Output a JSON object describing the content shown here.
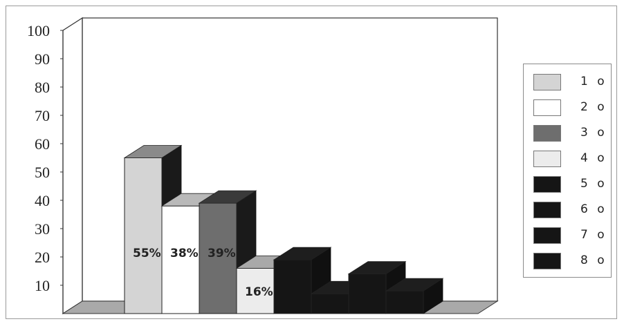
{
  "chart_data": {
    "type": "bar",
    "title": "",
    "xlabel": "",
    "ylabel": "",
    "ylim": [
      0,
      100
    ],
    "yticks": [
      10,
      20,
      30,
      40,
      50,
      60,
      70,
      80,
      90,
      100
    ],
    "legend_position": "right",
    "grid": false,
    "three_d": true,
    "categories": [
      "1 o",
      "2 o",
      "3 o",
      "4 o",
      "5 o",
      "6 o",
      "7 o",
      "8 o"
    ],
    "values": [
      55,
      38,
      39,
      16,
      19,
      7,
      14,
      8
    ],
    "data_labels": [
      "55%",
      "38%",
      "39%",
      "16%",
      "",
      "",
      "",
      ""
    ],
    "colors": [
      "#d4d4d4",
      "#ffffff",
      "#6e6e6e",
      "#ececec",
      "#151515",
      "#151515",
      "#151515",
      "#151515"
    ],
    "side_colors": [
      "#1a1a1a",
      "#1a1a1a",
      "#1a1a1a",
      "#1a1a1a",
      "#101010",
      "#101010",
      "#101010",
      "#101010"
    ],
    "top_colors": [
      "#8a8a8a",
      "#b9b9b9",
      "#3a3a3a",
      "#a9a9a9",
      "#1e1e1e",
      "#1e1e1e",
      "#1e1e1e",
      "#1e1e1e"
    ]
  }
}
